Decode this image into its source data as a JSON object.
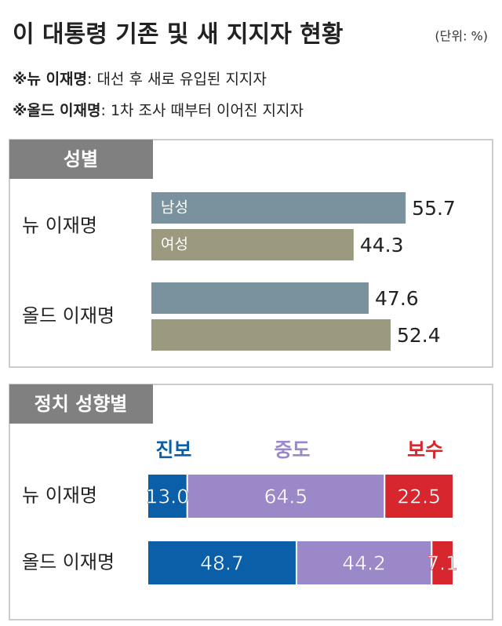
{
  "header": {
    "title": "이 대통령 기존 및 새 지지자 현황",
    "unit": "(단위: %)",
    "notes": [
      {
        "label": "※뉴 이재명",
        "text": ": 대선 후 새로 유입된 지지자"
      },
      {
        "label": "※올드 이재명",
        "text": ": 1차 조사 때부터 이어진 지지자"
      }
    ]
  },
  "chart_data": [
    {
      "type": "bar",
      "title": "성별",
      "categories": [
        "뉴 이재명",
        "올드 이재명"
      ],
      "series": [
        {
          "name": "남성",
          "color": "#7a929d",
          "values": [
            55.7,
            47.6
          ]
        },
        {
          "name": "여성",
          "color": "#9b9a7e",
          "values": [
            44.3,
            52.4
          ]
        }
      ]
    },
    {
      "type": "stacked-bar",
      "title": "정치 성향별",
      "categories": [
        "뉴 이재명",
        "올드 이재명"
      ],
      "series": [
        {
          "name": "진보",
          "color": "#0b5ea8",
          "values": [
            13,
            48.7
          ],
          "value_labels": [
            "13.0",
            "48.7"
          ]
        },
        {
          "name": "중도",
          "color": "#9b88c8",
          "values": [
            64.5,
            44.2
          ]
        },
        {
          "name": "보수",
          "color": "#d8262e",
          "values": [
            22.5,
            7.1
          ]
        }
      ]
    }
  ]
}
